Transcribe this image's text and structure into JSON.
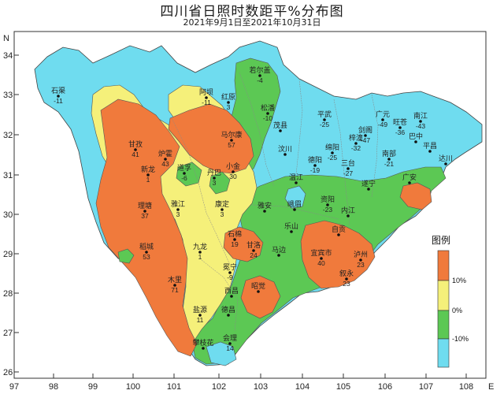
{
  "title": "四川省日照时数距平%分布图",
  "subtitle": "2021年9月1日至2021年10月31日",
  "axes": {
    "lon_ticks": [
      "97",
      "98",
      "99",
      "100",
      "101",
      "102",
      "103",
      "104",
      "105",
      "106",
      "107",
      "108"
    ],
    "lat_ticks": [
      "34",
      "33",
      "32",
      "31",
      "30",
      "29",
      "28",
      "27",
      "26"
    ],
    "lon_unit": "E",
    "lat_unit": "N"
  },
  "legend": {
    "title": "图例",
    "classes": [
      {
        "label": "10%",
        "color": "#f07a3c"
      },
      {
        "label": "0%",
        "color": "#f5f07a"
      },
      {
        "label": "-10%",
        "color": "#5cc854"
      },
      {
        "label": "",
        "color": "#6fdcef"
      }
    ],
    "breaks": [
      "10%",
      "0%",
      "-10%"
    ]
  },
  "stations": [
    {
      "name": "石渠",
      "value": "-11"
    },
    {
      "name": "若尔盖",
      "value": "-4"
    },
    {
      "name": "阿坝",
      "value": "-11"
    },
    {
      "name": "红原",
      "value": "3"
    },
    {
      "name": "松潘",
      "value": "-10"
    },
    {
      "name": "平武",
      "value": "-25"
    },
    {
      "name": "广元",
      "value": "-49"
    },
    {
      "name": "旺苍",
      "value": "-36"
    },
    {
      "name": "南江",
      "value": "-43"
    },
    {
      "name": "马尔康",
      "value": "57"
    },
    {
      "name": "甘孜",
      "value": "41"
    },
    {
      "name": "炉霍",
      "value": "43"
    },
    {
      "name": "茂县",
      "value": ""
    },
    {
      "name": "汶川",
      "value": ""
    },
    {
      "name": "剑阁",
      "value": "-47"
    },
    {
      "name": "巴中",
      "value": ""
    },
    {
      "name": "绵阳",
      "value": "-25"
    },
    {
      "name": "梓潼",
      "value": "-32"
    },
    {
      "name": "南部",
      "value": "-21"
    },
    {
      "name": "平昌",
      "value": ""
    },
    {
      "name": "新龙",
      "value": "1"
    },
    {
      "name": "道孚",
      "value": "-6"
    },
    {
      "name": "丹巴",
      "value": "3"
    },
    {
      "name": "小金",
      "value": "30"
    },
    {
      "name": "德阳",
      "value": "-19"
    },
    {
      "name": "三台",
      "value": "-27"
    },
    {
      "name": "达川",
      "value": ""
    },
    {
      "name": "温江",
      "value": ""
    },
    {
      "name": "遂宁",
      "value": ""
    },
    {
      "name": "广安",
      "value": ""
    },
    {
      "name": "理塘",
      "value": "37"
    },
    {
      "name": "雅江",
      "value": "3"
    },
    {
      "name": "康定",
      "value": "3"
    },
    {
      "name": "雅安",
      "value": ""
    },
    {
      "name": "峨眉",
      "value": ""
    },
    {
      "name": "资阳",
      "value": "-23"
    },
    {
      "name": "内江",
      "value": ""
    },
    {
      "name": "稻城",
      "value": "53"
    },
    {
      "name": "九龙",
      "value": "1"
    },
    {
      "name": "石棉",
      "value": "19"
    },
    {
      "name": "甘洛",
      "value": "24"
    },
    {
      "name": "乐山",
      "value": ""
    },
    {
      "name": "自贡",
      "value": ""
    },
    {
      "name": "宜宾市",
      "value": "40"
    },
    {
      "name": "泸州",
      "value": "23"
    },
    {
      "name": "冕宁",
      "value": "-9"
    },
    {
      "name": "马边",
      "value": ""
    },
    {
      "name": "叙永",
      "value": "23"
    },
    {
      "name": "木里",
      "value": "71"
    },
    {
      "name": "西昌",
      "value": ""
    },
    {
      "name": "昭觉",
      "value": ""
    },
    {
      "name": "盐源",
      "value": "11"
    },
    {
      "name": "德昌",
      "value": ""
    },
    {
      "name": "会理",
      "value": "14"
    },
    {
      "name": "攀枝花",
      "value": ""
    }
  ]
}
